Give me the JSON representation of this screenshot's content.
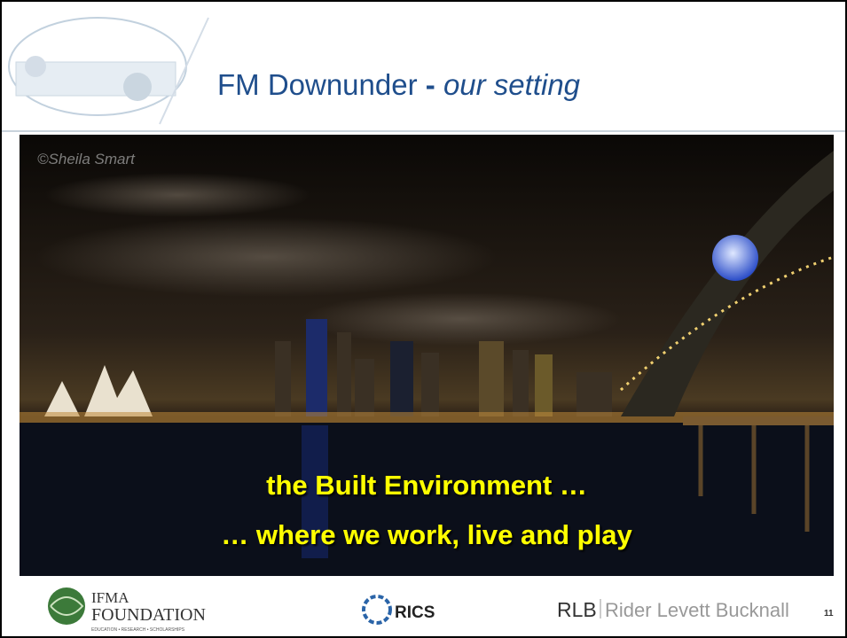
{
  "header": {
    "title": "FM Downunder",
    "separator": "-",
    "subtitle": "our setting"
  },
  "photo": {
    "credit": "©Sheila Smart",
    "caption": [
      "the Built Environment …",
      "… where we work, live and play"
    ]
  },
  "footer": {
    "logos": [
      {
        "name": "IFMA",
        "sub": "FOUNDATION",
        "tagline": "EDUCATION • RESEARCH • SCHOLARSHIPS"
      },
      {
        "name": "RICS"
      },
      {
        "name": "RLB",
        "sub": "Rider Levett Bucknall"
      }
    ],
    "page_number": "11"
  }
}
